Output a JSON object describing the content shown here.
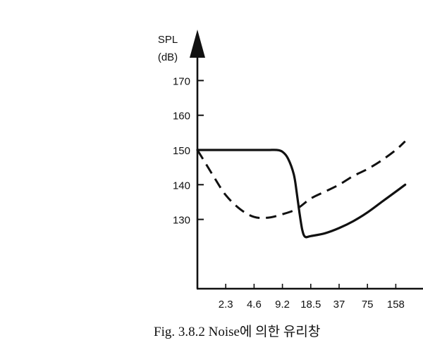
{
  "chart_data": {
    "type": "line",
    "ylabel": "SPL",
    "yunit": "(dB)",
    "caption": "Fig. 3.8.2  Noise에 의한 유리창",
    "categories": [
      "2.3",
      "4.6",
      "9.2",
      "18.5",
      "37",
      "75",
      "158"
    ],
    "yticks": [
      130,
      140,
      150,
      160,
      170
    ],
    "series": [
      {
        "style": "solid",
        "points": [
          [
            0.0,
            150.0
          ],
          [
            0.5,
            150.0
          ],
          [
            1.0,
            150.0
          ],
          [
            1.5,
            150.0
          ],
          [
            2.0,
            150.0
          ],
          [
            2.5,
            150.0
          ],
          [
            2.8,
            150.0
          ],
          [
            3.0,
            149.5
          ],
          [
            3.2,
            147.5
          ],
          [
            3.4,
            143.0
          ],
          [
            3.5,
            138.0
          ],
          [
            3.6,
            132.0
          ],
          [
            3.7,
            127.0
          ],
          [
            3.8,
            125.0
          ],
          [
            4.0,
            125.2
          ],
          [
            4.5,
            126.0
          ],
          [
            5.0,
            127.5
          ],
          [
            5.5,
            129.5
          ],
          [
            6.0,
            132.0
          ],
          [
            6.5,
            135.0
          ],
          [
            7.0,
            138.0
          ],
          [
            7.33,
            140.0
          ]
        ]
      },
      {
        "style": "dashed",
        "points": [
          [
            0.0,
            150.0
          ],
          [
            0.3,
            146.0
          ],
          [
            0.6,
            142.0
          ],
          [
            1.0,
            137.0
          ],
          [
            1.5,
            133.0
          ],
          [
            2.0,
            130.7
          ],
          [
            2.5,
            130.5
          ],
          [
            3.0,
            131.5
          ],
          [
            3.5,
            133.0
          ],
          [
            4.0,
            136.0
          ],
          [
            4.5,
            138.0
          ],
          [
            5.0,
            140.0
          ],
          [
            5.5,
            142.5
          ],
          [
            6.0,
            144.5
          ],
          [
            6.5,
            147.0
          ],
          [
            7.0,
            150.0
          ],
          [
            7.33,
            152.5
          ]
        ]
      }
    ]
  }
}
